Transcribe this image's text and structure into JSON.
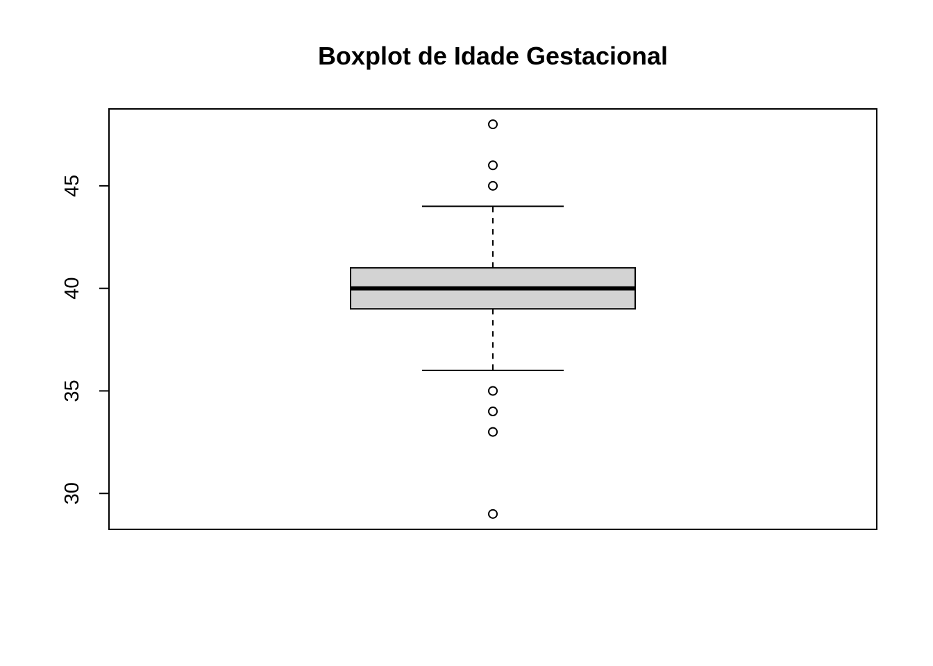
{
  "chart_data": {
    "type": "boxplot",
    "title": "Boxplot de Idade Gestacional",
    "xlabel": "",
    "ylabel": "",
    "ylim": [
      28.25,
      48.75
    ],
    "y_ticks": [
      30,
      35,
      40,
      45
    ],
    "y_tick_labels": [
      "30",
      "35",
      "40",
      "45"
    ],
    "grid": false,
    "box": {
      "lower_whisker": 36,
      "q1": 39,
      "median": 40,
      "q3": 41,
      "upper_whisker": 44,
      "outliers": [
        48,
        46,
        45,
        35,
        34,
        33,
        29
      ]
    },
    "colors": {
      "box_fill": "#d3d3d3",
      "stroke": "#000000",
      "background": "#ffffff"
    }
  }
}
